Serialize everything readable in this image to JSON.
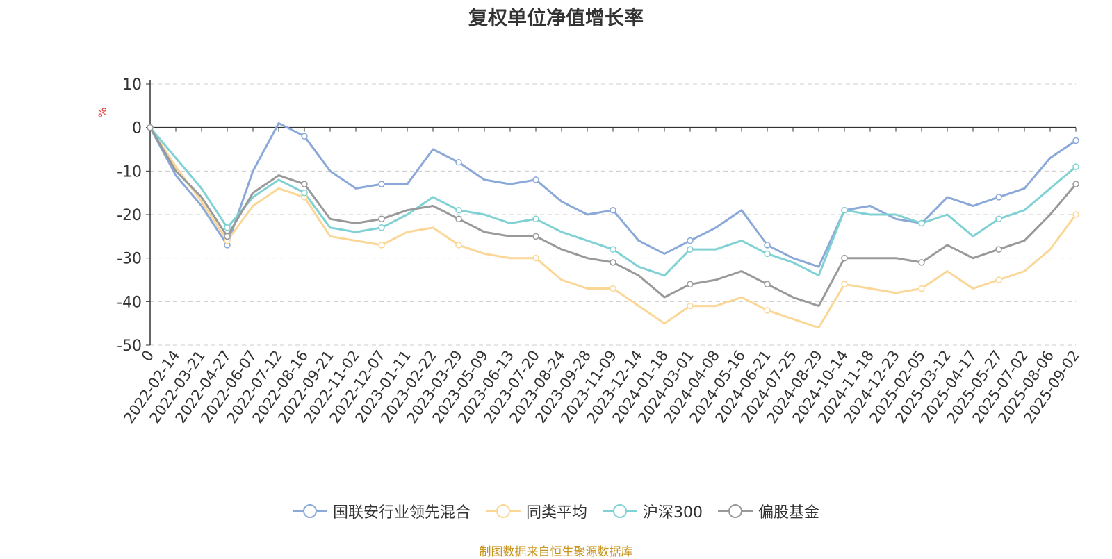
{
  "chart_data": {
    "type": "line",
    "title": "复权单位净值增长率",
    "ylabel": "%",
    "ylim": [
      -50,
      10
    ],
    "yticks": [
      10,
      0,
      -10,
      -20,
      -30,
      -40,
      -50
    ],
    "grid": true,
    "legend_position": "bottom",
    "x_tick_labels": [
      "0",
      "2022-02-14",
      "2022-03-21",
      "2022-04-27",
      "2022-06-07",
      "2022-07-12",
      "2022-08-16",
      "2022-09-21",
      "2022-11-02",
      "2022-12-07",
      "2023-01-11",
      "2023-02-22",
      "2023-03-29",
      "2023-05-09",
      "2023-06-13",
      "2023-07-20",
      "2023-08-24",
      "2023-09-28",
      "2023-11-09",
      "2023-12-14",
      "2024-01-18",
      "2024-03-01",
      "2024-04-08",
      "2024-05-16",
      "2024-06-21",
      "2024-07-25",
      "2024-08-29",
      "2024-10-14",
      "2024-11-18",
      "2024-12-23",
      "2025-02-05",
      "2025-03-12",
      "2025-04-17",
      "2025-05-27",
      "2025-07-02",
      "2025-08-06",
      "2025-09-02"
    ],
    "series": [
      {
        "name": "国联安行业领先混合",
        "color": "#8aa8d8",
        "values": [
          0,
          -11,
          -18,
          -27,
          -10,
          1,
          -2,
          -10,
          -14,
          -13,
          -13,
          -5,
          -8,
          -12,
          -13,
          -12,
          -17,
          -20,
          -19,
          -26,
          -29,
          -26,
          -23,
          -19,
          -27,
          -30,
          -32,
          -19,
          -18,
          -21,
          -22,
          -16,
          -18,
          -16,
          -14,
          -7,
          -3
        ]
      },
      {
        "name": "同类平均",
        "color": "#fad797",
        "values": [
          0,
          -9,
          -17,
          -26,
          -18,
          -14,
          -16,
          -25,
          -26,
          -27,
          -24,
          -23,
          -27,
          -29,
          -30,
          -30,
          -35,
          -37,
          -37,
          -41,
          -45,
          -41,
          -41,
          -39,
          -42,
          -44,
          -46,
          -36,
          -37,
          -38,
          -37,
          -33,
          -37,
          -35,
          -33,
          -28,
          -20
        ]
      },
      {
        "name": "沪深300",
        "color": "#7fd1d4",
        "values": [
          0,
          -7,
          -14,
          -23,
          -16,
          -12,
          -15,
          -23,
          -24,
          -23,
          -20,
          -16,
          -19,
          -20,
          -22,
          -21,
          -24,
          -26,
          -28,
          -32,
          -34,
          -28,
          -28,
          -26,
          -29,
          -31,
          -34,
          -19,
          -20,
          -20,
          -22,
          -20,
          -25,
          -21,
          -19,
          -14,
          -9
        ]
      },
      {
        "name": "偏股基金",
        "color": "#999999",
        "values": [
          0,
          -10,
          -16,
          -25,
          -15,
          -11,
          -13,
          -21,
          -22,
          -21,
          -19,
          -18,
          -21,
          -24,
          -25,
          -25,
          -28,
          -30,
          -31,
          -34,
          -39,
          -36,
          -35,
          -33,
          -36,
          -39,
          -41,
          -30,
          -30,
          -30,
          -31,
          -27,
          -30,
          -28,
          -26,
          -20,
          -13
        ]
      }
    ]
  },
  "source_note": "制图数据来自恒生聚源数据库"
}
